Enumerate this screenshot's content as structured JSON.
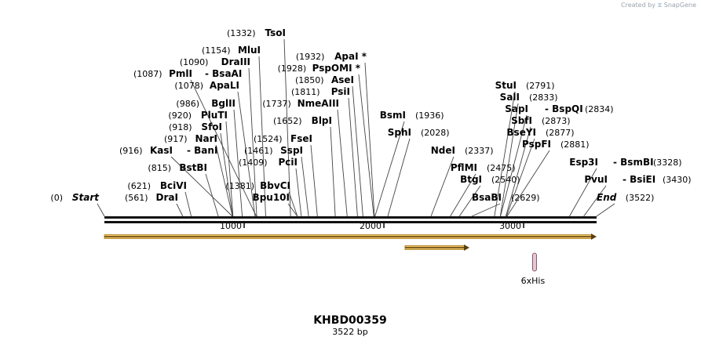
{
  "brand": {
    "prefix": "Created by",
    "logo": "⧖",
    "name": "SnapGene"
  },
  "map": {
    "name": "KHBD00359",
    "length_label": "3522 bp",
    "length": 3522,
    "ticks": [
      "1000",
      "2000",
      "3000"
    ],
    "tick_values": [
      1000,
      2000,
      3000
    ],
    "features": [
      {
        "name": "main-arrow",
        "start": 0,
        "end": 3522,
        "color": "#f5c766"
      },
      {
        "name": "sub-arrow",
        "start": 2151,
        "end": 2612,
        "color": "#f5c766"
      }
    ],
    "marker": {
      "label": "6xHis",
      "pos": 3078,
      "color": "#e9c6d4"
    },
    "sites": [
      {
        "label": "Start",
        "pos": 0,
        "pos_label": "(0)",
        "italic": true
      },
      {
        "label": "DraI",
        "pos": 561,
        "pos_label": "(561)"
      },
      {
        "label": "BciVI",
        "pos": 621,
        "pos_label": "(621)"
      },
      {
        "label": "BstBI",
        "pos": 815,
        "pos_label": "(815)"
      },
      {
        "label": "KasI",
        "pos": 916,
        "pos_label": "(916)",
        "extra": "BanI"
      },
      {
        "label": "NarI",
        "pos": 917,
        "pos_label": "(917)"
      },
      {
        "label": "SfoI",
        "pos": 918,
        "pos_label": "(918)"
      },
      {
        "label": "PluTI",
        "pos": 920,
        "pos_label": "(920)"
      },
      {
        "label": "BglII",
        "pos": 986,
        "pos_label": "(986)"
      },
      {
        "label": "ApaLI",
        "pos": 1078,
        "pos_label": "(1078)"
      },
      {
        "label": "PmlI",
        "pos": 1087,
        "pos_label": "(1087)",
        "extra": "BsaAI"
      },
      {
        "label": "DraIII",
        "pos": 1090,
        "pos_label": "(1090)"
      },
      {
        "label": "MluI",
        "pos": 1154,
        "pos_label": "(1154)"
      },
      {
        "label": "TsoI",
        "pos": 1332,
        "pos_label": "(1332)"
      },
      {
        "label": "BbvCI",
        "pos": 1381,
        "pos_label": "(1381)"
      },
      {
        "label": "Bpu10I",
        "pos": 1381,
        "pos_label": ""
      },
      {
        "label": "PciI",
        "pos": 1409,
        "pos_label": "(1409)"
      },
      {
        "label": "SspI",
        "pos": 1461,
        "pos_label": "(1461)"
      },
      {
        "label": "FseI",
        "pos": 1524,
        "pos_label": "(1524)"
      },
      {
        "label": "BlpI",
        "pos": 1652,
        "pos_label": "(1652)"
      },
      {
        "label": "NmeAIII",
        "pos": 1737,
        "pos_label": "(1737)"
      },
      {
        "label": "PsiI",
        "pos": 1811,
        "pos_label": "(1811)"
      },
      {
        "label": "AseI",
        "pos": 1850,
        "pos_label": "(1850)"
      },
      {
        "label": "PspOMI *",
        "pos": 1928,
        "pos_label": "(1928)"
      },
      {
        "label": "ApaI *",
        "pos": 1932,
        "pos_label": "(1932)"
      },
      {
        "label": "BsmI",
        "pos": 1936,
        "pos_label": "(1936)"
      },
      {
        "label": "SphI",
        "pos": 2028,
        "pos_label": "(2028)"
      },
      {
        "label": "NdeI",
        "pos": 2337,
        "pos_label": "(2337)"
      },
      {
        "label": "PflMI",
        "pos": 2475,
        "pos_label": "(2475)"
      },
      {
        "label": "BtgI",
        "pos": 2540,
        "pos_label": "(2540)"
      },
      {
        "label": "BsaBI",
        "pos": 2629,
        "pos_label": "(2629)"
      },
      {
        "label": "StuI",
        "pos": 2791,
        "pos_label": "(2791)"
      },
      {
        "label": "SalI",
        "pos": 2833,
        "pos_label": "(2833)"
      },
      {
        "label": "SapI",
        "pos": 2834,
        "pos_label": "(2834)",
        "extra": "BspQI"
      },
      {
        "label": "SbfI",
        "pos": 2873,
        "pos_label": "(2873)"
      },
      {
        "label": "BseYI",
        "pos": 2877,
        "pos_label": "(2877)"
      },
      {
        "label": "PspFI",
        "pos": 2881,
        "pos_label": "(2881)"
      },
      {
        "label": "Esp3I",
        "pos": 3328,
        "pos_label": "(3328)",
        "extra": "BsmBI"
      },
      {
        "label": "PvuI",
        "pos": 3430,
        "pos_label": "(3430)",
        "extra": "BsiEI"
      },
      {
        "label": "End",
        "pos": 3522,
        "pos_label": "(3522)",
        "italic": true
      }
    ]
  }
}
